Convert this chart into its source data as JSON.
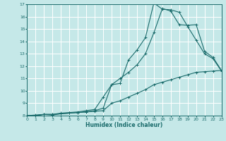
{
  "xlabel": "Humidex (Indice chaleur)",
  "xlim": [
    0,
    23
  ],
  "ylim": [
    8,
    17
  ],
  "yticks": [
    8,
    9,
    10,
    11,
    12,
    13,
    14,
    15,
    16,
    17
  ],
  "xticks": [
    0,
    1,
    2,
    3,
    4,
    5,
    6,
    7,
    8,
    9,
    10,
    11,
    12,
    13,
    14,
    15,
    16,
    17,
    18,
    19,
    20,
    21,
    22,
    23
  ],
  "bg_color": "#c5e8e8",
  "grid_color": "#ffffff",
  "line_color": "#1a6b6b",
  "line1_x": [
    0,
    1,
    2,
    3,
    4,
    5,
    6,
    7,
    8,
    9,
    10,
    11,
    12,
    13,
    14,
    15,
    16,
    17,
    18,
    19,
    20,
    21,
    22,
    23
  ],
  "line1_y": [
    8.0,
    8.0,
    8.1,
    8.05,
    8.15,
    8.2,
    8.25,
    8.3,
    8.4,
    8.6,
    10.5,
    10.6,
    12.5,
    13.3,
    14.3,
    17.1,
    16.6,
    16.55,
    16.35,
    15.2,
    14.1,
    13.0,
    12.6,
    11.6
  ],
  "line2_x": [
    0,
    1,
    2,
    3,
    4,
    5,
    6,
    7,
    8,
    9,
    10,
    11,
    12,
    13,
    14,
    15,
    16,
    17,
    18,
    19,
    20,
    21,
    22,
    23
  ],
  "line2_y": [
    8.0,
    8.0,
    8.1,
    8.1,
    8.2,
    8.25,
    8.3,
    8.4,
    8.5,
    9.5,
    10.5,
    11.0,
    11.5,
    12.1,
    13.0,
    14.7,
    16.65,
    16.45,
    15.35,
    15.3,
    15.35,
    13.2,
    12.7,
    11.65
  ],
  "line3_x": [
    0,
    1,
    2,
    3,
    4,
    5,
    6,
    7,
    8,
    9,
    10,
    11,
    12,
    13,
    14,
    15,
    16,
    17,
    18,
    19,
    20,
    21,
    22,
    23
  ],
  "line3_y": [
    8.0,
    8.05,
    8.1,
    8.1,
    8.15,
    8.2,
    8.25,
    8.3,
    8.35,
    8.4,
    9.0,
    9.2,
    9.5,
    9.8,
    10.1,
    10.5,
    10.7,
    10.9,
    11.1,
    11.3,
    11.5,
    11.55,
    11.6,
    11.65
  ]
}
